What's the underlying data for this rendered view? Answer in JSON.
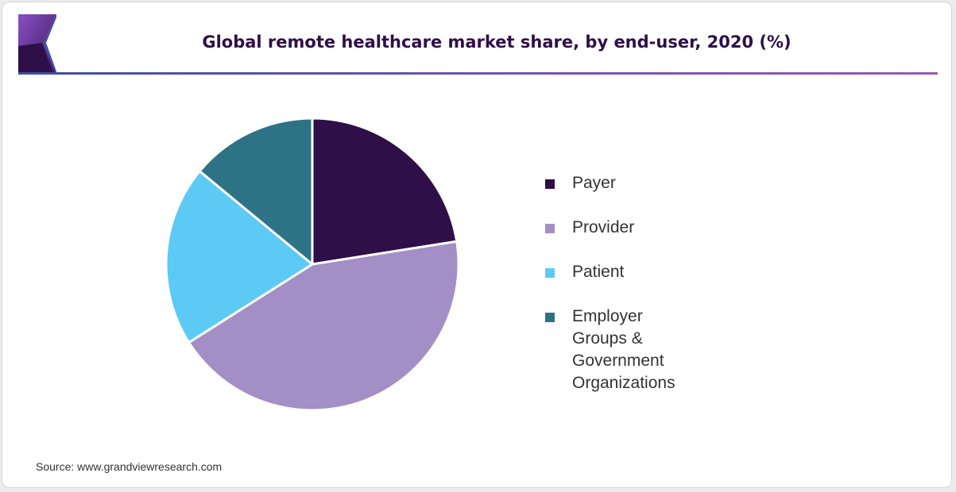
{
  "chart_data": {
    "type": "pie",
    "title": "Global remote healthcare market share, by end-user, 2020 (%)",
    "slices": [
      {
        "label": "Payer",
        "value": 22.5,
        "color": "#2f0f47"
      },
      {
        "label": "Provider",
        "value": 43.5,
        "color": "#a38fc6"
      },
      {
        "label": "Patient",
        "value": 20.0,
        "color": "#5ccaf5"
      },
      {
        "label": "Employer Groups &\nGovernment Organizations",
        "value": 14.0,
        "color": "#2e7285"
      }
    ],
    "start_angle_deg": 0,
    "direction": "clockwise",
    "legend_position": "right"
  },
  "source": "Source: www.grandviewresearch.com",
  "colors": {
    "title": "#2f0f47",
    "rule_start": "#3d4fa8",
    "rule_end": "#9b58b5",
    "logo_dark": "#2f0f47",
    "logo_mid": "#6b3aa0",
    "logo_light": "#3d4fa8"
  }
}
